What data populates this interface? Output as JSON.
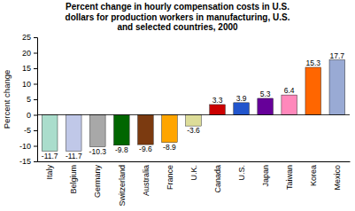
{
  "chart_data": {
    "type": "bar",
    "title": "Percent change in hourly compensation costs in U.S.\ndollars for production workers in manufacturing, U.S.\nand selected countries, 2000",
    "ylabel": "Percent change",
    "categories": [
      "Italy",
      "Belgium",
      "Germany",
      "Switzerland",
      "Australia",
      "France",
      "U.K.",
      "Canada",
      "U.S.",
      "Japan",
      "Taiwan",
      "Korea",
      "Mexico"
    ],
    "values": [
      -11.7,
      -11.7,
      -10.3,
      -9.8,
      -9.6,
      -8.9,
      -3.6,
      3.3,
      3.9,
      5.3,
      6.4,
      15.3,
      17.7
    ],
    "colors": [
      "#aaddcc",
      "#c0c8e8",
      "#a8a8a8",
      "#006600",
      "#7B3A10",
      "#FFA500",
      "#dddd99",
      "#cc0000",
      "#2255cc",
      "#660099",
      "#ff88bb",
      "#FF6600",
      "#99aad4"
    ],
    "ylim": [
      -15,
      25
    ],
    "yticks": [
      -15,
      -10,
      -5,
      0,
      5,
      10,
      15,
      20,
      25
    ],
    "grid": false,
    "data_labels": true
  }
}
